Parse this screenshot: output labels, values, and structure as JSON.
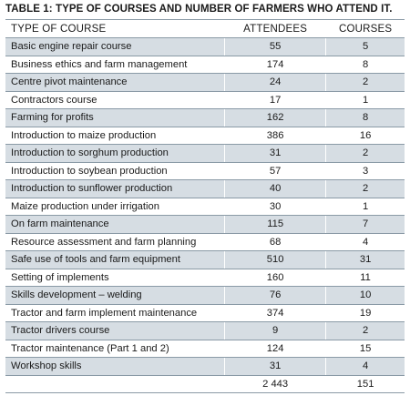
{
  "caption": "TABLE 1: TYPE OF COURSES AND NUMBER OF FARMERS WHO ATTEND IT.",
  "headers": {
    "type": "TYPE OF COURSE",
    "attendees": "ATTENDEES",
    "courses": "COURSES"
  },
  "rows": [
    {
      "type": "Basic engine repair course",
      "attendees": "55",
      "courses": "5"
    },
    {
      "type": "Business ethics and farm management",
      "attendees": "174",
      "courses": "8"
    },
    {
      "type": "Centre pivot maintenance",
      "attendees": "24",
      "courses": "2"
    },
    {
      "type": "Contractors course",
      "attendees": "17",
      "courses": "1"
    },
    {
      "type": "Farming for profits",
      "attendees": "162",
      "courses": "8"
    },
    {
      "type": "Introduction to maize production",
      "attendees": "386",
      "courses": "16"
    },
    {
      "type": "Introduction to sorghum production",
      "attendees": "31",
      "courses": "2"
    },
    {
      "type": "Introduction to soybean production",
      "attendees": "57",
      "courses": "3"
    },
    {
      "type": "Introduction to sunflower production",
      "attendees": "40",
      "courses": "2"
    },
    {
      "type": "Maize production under irrigation",
      "attendees": "30",
      "courses": "1"
    },
    {
      "type": "On farm maintenance",
      "attendees": "115",
      "courses": "7"
    },
    {
      "type": "Resource assessment and farm planning",
      "attendees": "68",
      "courses": "4"
    },
    {
      "type": "Safe use of tools and farm equipment",
      "attendees": "510",
      "courses": "31"
    },
    {
      "type": "Setting of implements",
      "attendees": "160",
      "courses": "11"
    },
    {
      "type": "Skills development – welding",
      "attendees": "76",
      "courses": "10"
    },
    {
      "type": "Tractor and farm implement maintenance",
      "attendees": "374",
      "courses": "19"
    },
    {
      "type": "Tractor drivers course",
      "attendees": "9",
      "courses": "2"
    },
    {
      "type": "Tractor maintenance (Part 1 and 2)",
      "attendees": "124",
      "courses": "15"
    },
    {
      "type": "Workshop skills",
      "attendees": "31",
      "courses": "4"
    }
  ],
  "totals": {
    "type": "",
    "attendees": "2 443",
    "courses": "151"
  }
}
